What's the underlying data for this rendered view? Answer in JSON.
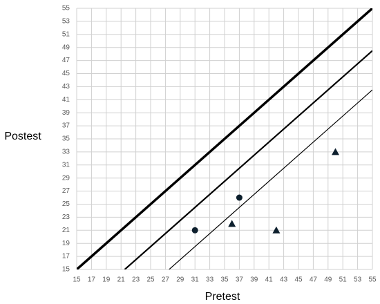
{
  "chart_data": {
    "type": "scatter",
    "x_label": "Pretest",
    "y_label": "Postest",
    "xlim": [
      15,
      55
    ],
    "ylim": [
      15,
      55
    ],
    "xticks": [
      15,
      17,
      19,
      21,
      23,
      25,
      27,
      29,
      31,
      33,
      35,
      37,
      39,
      41,
      43,
      45,
      47,
      49,
      51,
      53,
      55
    ],
    "yticks": [
      15,
      17,
      19,
      21,
      23,
      25,
      27,
      29,
      31,
      33,
      35,
      37,
      39,
      41,
      43,
      45,
      47,
      49,
      51,
      53,
      55
    ],
    "grid": true,
    "series": [
      {
        "mode": "line",
        "color": "#000000",
        "line_width": 3.5,
        "x": [
          15,
          55
        ],
        "y": [
          15,
          55
        ]
      },
      {
        "mode": "line",
        "color": "#000000",
        "line_width": 2.2,
        "x": [
          21.5,
          55
        ],
        "y": [
          15,
          48.5
        ]
      },
      {
        "mode": "line",
        "color": "#000000",
        "line_width": 1.2,
        "x": [
          27.5,
          55
        ],
        "y": [
          15,
          42.5
        ]
      },
      {
        "mode": "markers",
        "marker": "circle",
        "color": "#0d1f2d",
        "x": [
          31,
          37
        ],
        "y": [
          21,
          26
        ]
      },
      {
        "mode": "markers",
        "marker": "triangle",
        "color": "#0d1f2d",
        "x": [
          36,
          42,
          50
        ],
        "y": [
          22,
          21,
          33
        ]
      }
    ]
  }
}
